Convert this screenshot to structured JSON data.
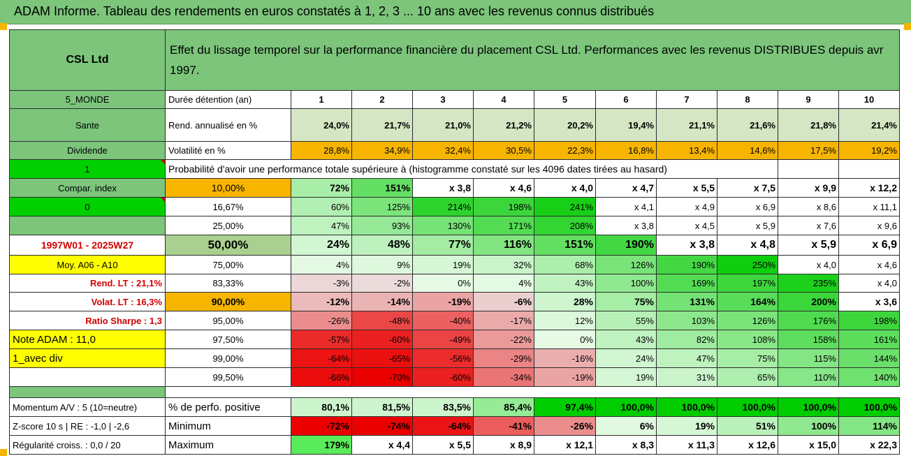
{
  "header": {
    "title": "ADAM Informe. Tableau des rendements en euros constatés à 1, 2, 3 ... 10 ans avec les revenus connus distribués"
  },
  "intro": {
    "company": "CSL Ltd",
    "description": "Effet du lissage temporel sur la performance financière du placement CSL Ltd. Performances avec les revenus DISTRIBUES depuis avr 1997."
  },
  "side": {
    "zone": "5_MONDE",
    "sector": "Sante",
    "type": "Dividende",
    "flag1": "1",
    "compar_label": "Compar. index",
    "flag2": "0",
    "period": "1997W01 - 2025W27",
    "moy": "Moy. A06 - A10",
    "rend_lt": "Rend. LT :   21,1%",
    "volat_lt": "Volat. LT :   16,3%",
    "sharpe": "Ratio Sharpe :    1,3",
    "note": "Note ADAM : 11,0",
    "variant": "1_avec div",
    "momentum": "Momentum A/V : 5 (10=neutre)",
    "zscore": "Z-score 10 s | RE : -1,0 | -2,6",
    "regularite": "Régularité croiss. : 0,0 / 20"
  },
  "years_row": {
    "label": "Durée détention (an)",
    "years": [
      "1",
      "2",
      "3",
      "4",
      "5",
      "6",
      "7",
      "8",
      "9",
      "10"
    ]
  },
  "rend_row": {
    "label": "Rend. annualisé en %",
    "values": [
      "24,0%",
      "21,7%",
      "21,0%",
      "21,2%",
      "20,2%",
      "19,4%",
      "21,1%",
      "21,6%",
      "21,8%",
      "21,4%"
    ]
  },
  "vol_row": {
    "label": "Volatilité en %",
    "values": [
      "28,8%",
      "34,9%",
      "32,4%",
      "30,5%",
      "22,3%",
      "16,8%",
      "13,4%",
      "14,6%",
      "17,5%",
      "19,2%"
    ]
  },
  "prob_title": "Probabilité d'avoir une performance totale supérieure à (histogramme constaté sur les 4096 dates tirées au hasard)",
  "prob_rows": [
    {
      "p": "10,00%",
      "values": [
        "72%",
        "151%",
        "x 3,8",
        "x 4,6",
        "x 4,0",
        "x 4,7",
        "x 5,5",
        "x 7,5",
        "x 9,9",
        "x 12,2"
      ]
    },
    {
      "p": "16,67%",
      "values": [
        "60%",
        "125%",
        "214%",
        "198%",
        "241%",
        "x 4,1",
        "x 4,9",
        "x 6,9",
        "x 8,6",
        "x 11,1"
      ]
    },
    {
      "p": "25,00%",
      "values": [
        "47%",
        "93%",
        "130%",
        "171%",
        "208%",
        "x 3,8",
        "x 4,5",
        "x 5,9",
        "x 7,6",
        "x 9,6"
      ]
    },
    {
      "p": "50,00%",
      "values": [
        "24%",
        "48%",
        "77%",
        "116%",
        "151%",
        "190%",
        "x 3,8",
        "x 4,8",
        "x 5,9",
        "x 6,9"
      ]
    },
    {
      "p": "75,00%",
      "values": [
        "4%",
        "9%",
        "19%",
        "32%",
        "68%",
        "126%",
        "190%",
        "250%",
        "x 4,0",
        "x 4,6"
      ]
    },
    {
      "p": "83,33%",
      "values": [
        "-3%",
        "-2%",
        "0%",
        "4%",
        "43%",
        "100%",
        "169%",
        "197%",
        "235%",
        "x 4,0"
      ]
    },
    {
      "p": "90,00%",
      "values": [
        "-12%",
        "-14%",
        "-19%",
        "-6%",
        "28%",
        "75%",
        "131%",
        "164%",
        "200%",
        "x 3,6"
      ]
    },
    {
      "p": "95,00%",
      "values": [
        "-26%",
        "-48%",
        "-40%",
        "-17%",
        "12%",
        "55%",
        "103%",
        "126%",
        "176%",
        "198%"
      ]
    },
    {
      "p": "97,50%",
      "values": [
        "-57%",
        "-60%",
        "-49%",
        "-22%",
        "0%",
        "43%",
        "82%",
        "108%",
        "158%",
        "161%"
      ]
    },
    {
      "p": "99,00%",
      "values": [
        "-64%",
        "-65%",
        "-56%",
        "-29%",
        "-16%",
        "24%",
        "47%",
        "75%",
        "115%",
        "144%"
      ]
    },
    {
      "p": "99,50%",
      "values": [
        "-66%",
        "-70%",
        "-60%",
        "-34%",
        "-19%",
        "19%",
        "31%",
        "65%",
        "110%",
        "140%"
      ]
    }
  ],
  "bottom_rows": [
    {
      "label": "% de perfo. positive",
      "values": [
        "80,1%",
        "81,5%",
        "83,5%",
        "85,4%",
        "97,4%",
        "100,0%",
        "100,0%",
        "100,0%",
        "100,0%",
        "100,0%"
      ]
    },
    {
      "label": "Minimum",
      "values": [
        "-72%",
        "-74%",
        "-64%",
        "-41%",
        "-26%",
        "6%",
        "19%",
        "51%",
        "100%",
        "114%"
      ]
    },
    {
      "label": "Maximum",
      "values": [
        "179%",
        "x 4,4",
        "x 5,5",
        "x 8,9",
        "x 12,1",
        "x 8,3",
        "x 11,3",
        "x 12,6",
        "x 15,0",
        "x 22,3"
      ]
    }
  ],
  "colors": {
    "header_green": "#7cc57b",
    "light_green": "#c6e0b4",
    "orange": "#f7b500",
    "yellow": "#ffff00",
    "bright_green": "#00d000",
    "red": "#e80000"
  }
}
